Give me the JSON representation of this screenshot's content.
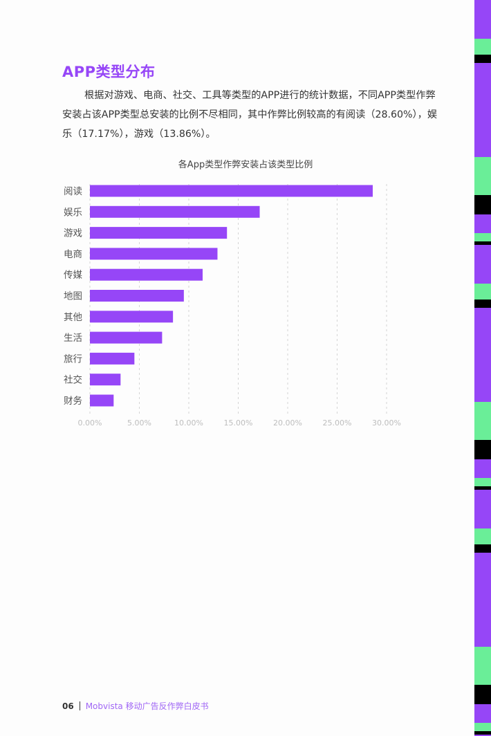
{
  "section_title": "APP类型分布",
  "paragraph": "根据对游戏、电商、社交、工具等类型的APP进行的统计数据，不同APP类型作弊安装占该APP类型总安装的比例不尽相同，其中作弊比例较高的有阅读（28.60%），娱乐（17.17%），游戏（13.86%）。",
  "footer": {
    "page": "06",
    "publication": "Mobvista 移动广告反作弊白皮书"
  },
  "colors": {
    "accent": "#9646f7",
    "green": "#6aee98",
    "black": "#000000"
  },
  "chart_data": {
    "type": "bar",
    "orientation": "horizontal",
    "title": "各App类型作弊安装占该类型比例",
    "categories": [
      "阅读",
      "娱乐",
      "游戏",
      "电商",
      "传媒",
      "地图",
      "其他",
      "生活",
      "旅行",
      "社交",
      "财务"
    ],
    "values": [
      28.6,
      17.17,
      13.86,
      12.9,
      11.4,
      9.5,
      8.4,
      7.3,
      4.5,
      3.1,
      2.4
    ],
    "unit": "%",
    "xlim": [
      0,
      30
    ],
    "xticks": [
      "0.00%",
      "5.00%",
      "10.00%",
      "15.00%",
      "20.00%",
      "25.00%",
      "30.00%"
    ],
    "grid": "vertical dashed",
    "xlabel": "",
    "ylabel": "",
    "color": "#9646f7"
  }
}
